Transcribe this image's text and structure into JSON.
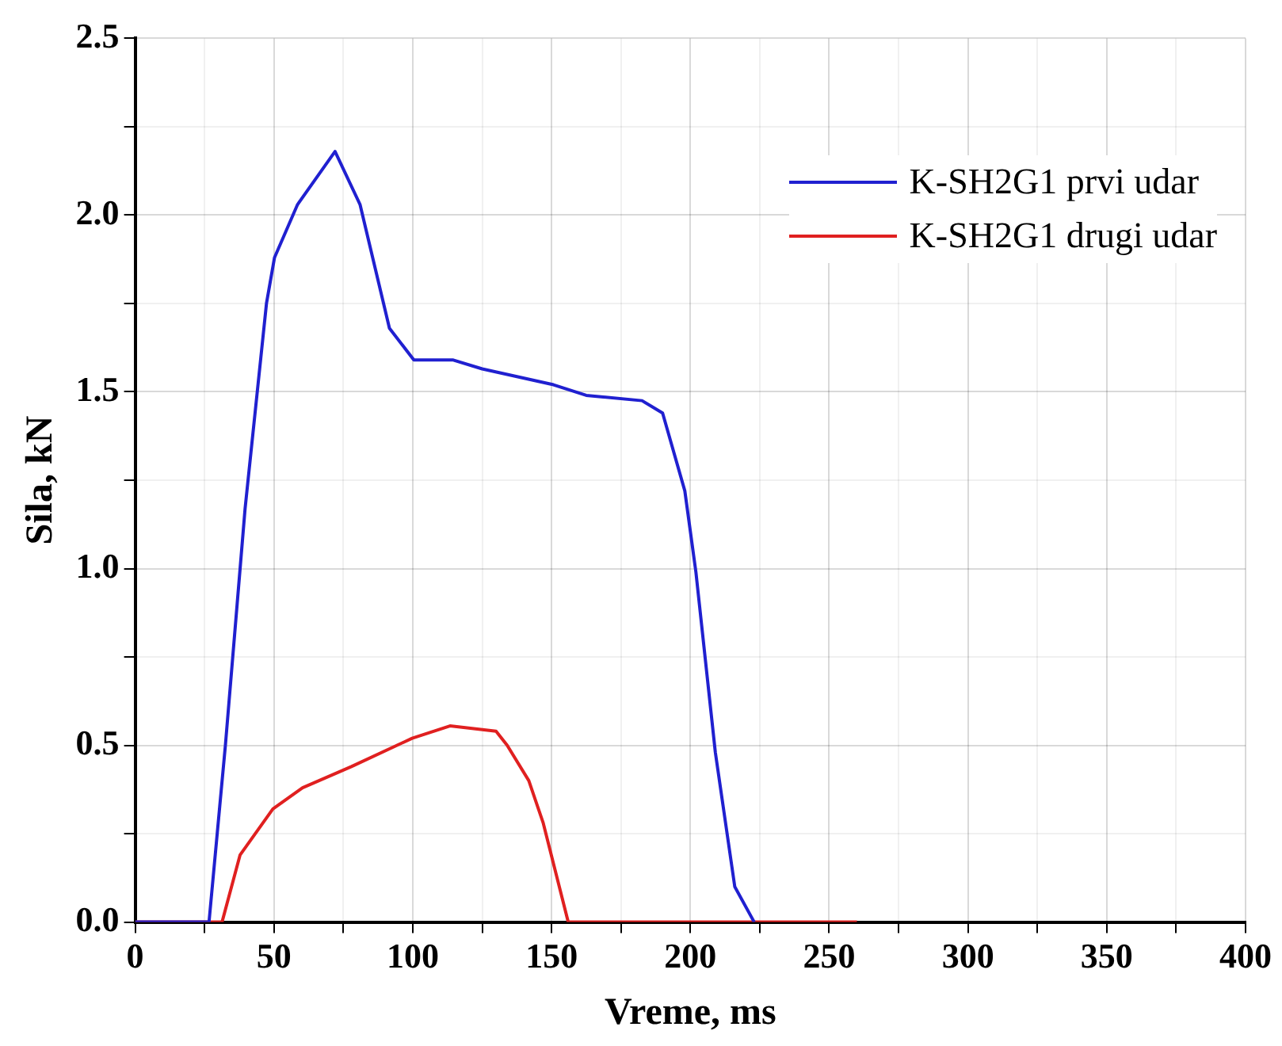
{
  "chart_data": {
    "type": "line",
    "xlabel": "Vreme, ms",
    "ylabel": "Sila, kN",
    "xlim": [
      0,
      400
    ],
    "ylim": [
      0,
      2.5
    ],
    "xticks": [
      0,
      {
        "value": 25,
        "label": null
      },
      50,
      {
        "value": 75,
        "label": null
      },
      100,
      {
        "value": 125,
        "label": null
      },
      150,
      {
        "value": 175,
        "label": null
      },
      200,
      {
        "value": 225,
        "label": null
      },
      250,
      {
        "value": 275,
        "label": null
      },
      300,
      {
        "value": 325,
        "label": null
      },
      350,
      {
        "value": 375,
        "label": null
      },
      400
    ],
    "yticks": [
      {
        "value": 0,
        "label": "0.0"
      },
      {
        "value": 0.25,
        "label": null
      },
      {
        "value": 0.5,
        "label": "0.5"
      },
      {
        "value": 0.75,
        "label": null
      },
      {
        "value": 1,
        "label": "1.0"
      },
      {
        "value": 1.25,
        "label": null
      },
      {
        "value": 1.5,
        "label": "1.5"
      },
      {
        "value": 1.75,
        "label": null
      },
      {
        "value": 2,
        "label": "2.0"
      },
      {
        "value": 2.25,
        "label": null
      },
      {
        "value": 2.5,
        "label": "2.5"
      }
    ],
    "grid": true,
    "legend": "top right",
    "marker": "none",
    "line_style": "solid",
    "series": [
      {
        "name": "K-SH2G1 prvi udar",
        "color": "#2020d0",
        "x": [
          0,
          26.6,
          32.5,
          37.8,
          39.6,
          47.3,
          50.2,
          58.5,
          72,
          81,
          91.6,
          100.4,
          114.6,
          125,
          150.7,
          162.5,
          182.6,
          190,
          198,
          202,
          209,
          216,
          223
        ],
        "values": [
          0,
          0,
          0.5,
          1.0,
          1.17,
          1.75,
          1.88,
          2.03,
          2.18,
          2.03,
          1.68,
          1.59,
          1.59,
          1.565,
          1.52,
          1.49,
          1.475,
          1.44,
          1.22,
          0.99,
          0.48,
          0.1,
          0
        ]
      },
      {
        "name": "K-SH2G1 drugi udar",
        "color": "#e02020",
        "x": [
          0,
          31.3,
          37.8,
          49.6,
          60.3,
          77.9,
          99.8,
          113.4,
          130,
          134,
          141.8,
          147,
          156,
          260
        ],
        "values": [
          0,
          0,
          0.19,
          0.32,
          0.38,
          0.44,
          0.52,
          0.555,
          0.54,
          0.5,
          0.4,
          0.28,
          0,
          0
        ]
      }
    ]
  }
}
